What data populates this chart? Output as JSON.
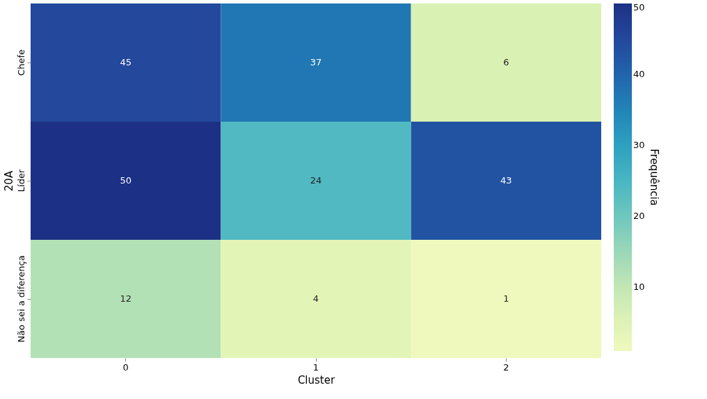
{
  "chart_data": {
    "type": "heatmap",
    "xlabel": "Cluster",
    "ylabel": "20A",
    "clabel": "Frequência",
    "categories": [
      "0",
      "1",
      "2"
    ],
    "y_categories": [
      "Chefe",
      "Líder",
      "Não sei a diferença"
    ],
    "cells": [
      [
        45,
        37,
        6
      ],
      [
        50,
        24,
        43
      ],
      [
        12,
        4,
        1
      ]
    ],
    "clim": [
      1,
      50
    ],
    "cticks": [
      10,
      20,
      30,
      40,
      50
    ],
    "data_labels": true
  }
}
